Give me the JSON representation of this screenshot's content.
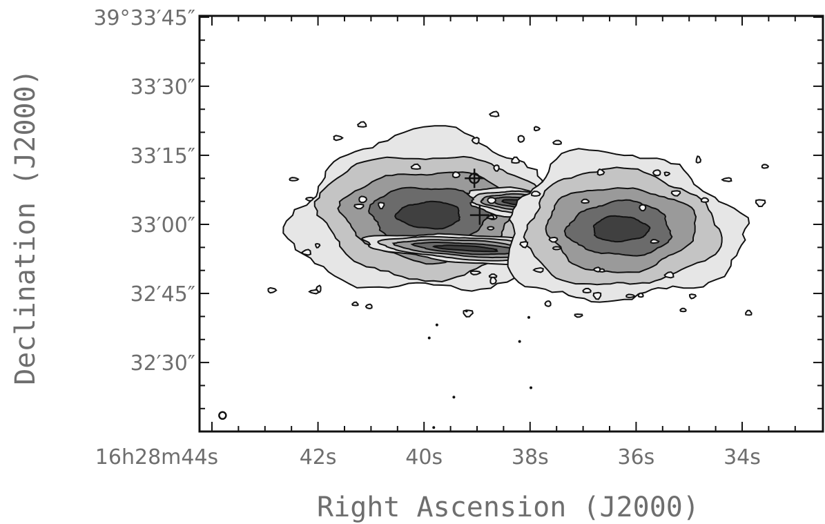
{
  "chart_data": {
    "type": "contour_image",
    "xlabel": "Right Ascension (J2000)",
    "ylabel": "Declination (J2000)",
    "x_ticks": [
      {
        "value": 44,
        "text": "16h28m44s"
      },
      {
        "value": 42,
        "text": "42s"
      },
      {
        "value": 40,
        "text": "40s"
      },
      {
        "value": 38,
        "text": "38s"
      },
      {
        "value": 36,
        "text": "36s"
      },
      {
        "value": 34,
        "text": "34s"
      }
    ],
    "y_ticks": [
      {
        "value": 45,
        "text": "39°33′45″"
      },
      {
        "value": 30,
        "text": "33′30″"
      },
      {
        "value": 15,
        "text": "33′15″"
      },
      {
        "value": 0,
        "text": "33′00″"
      },
      {
        "value": -15,
        "text": "32′45″"
      },
      {
        "value": -30,
        "text": "32′30″"
      }
    ],
    "x_range_sec": [
      44.0,
      32.5
    ],
    "y_range_arcsec_rel_39d33m00s": [
      -45.0,
      45.0
    ],
    "contour_levels": 5,
    "colors": {
      "contour": "#111111",
      "fill_levels": [
        "#e6e6e6",
        "#c4c4c4",
        "#9a9a9a",
        "#6b6b6b",
        "#404040"
      ]
    },
    "features": [
      {
        "name": "east lobe",
        "ra_sec": 39.9,
        "dec_arcsec": 2.0,
        "width_arcsec": 46,
        "height_arcsec": 34
      },
      {
        "name": "east jet",
        "ra_sec": 39.2,
        "dec_arcsec": -5.2,
        "width_arcsec": 33,
        "height_arcsec": 6
      },
      {
        "name": "central knots",
        "ra_sec": 38.2,
        "dec_arcsec": 4.8,
        "width_arcsec": 18,
        "height_arcsec": 6
      },
      {
        "name": "west lobe",
        "ra_sec": 36.3,
        "dec_arcsec": -1.0,
        "width_arcsec": 40,
        "height_arcsec": 32
      }
    ],
    "markers": [
      {
        "type": "cross-circle",
        "ra_sec": 39.05,
        "dec_arcsec": 10.0
      },
      {
        "type": "cross",
        "ra_sec": 38.95,
        "dec_arcsec": 2.0
      }
    ],
    "beam": {
      "ra_sec": 43.8,
      "dec_arcsec": -41.5
    }
  }
}
